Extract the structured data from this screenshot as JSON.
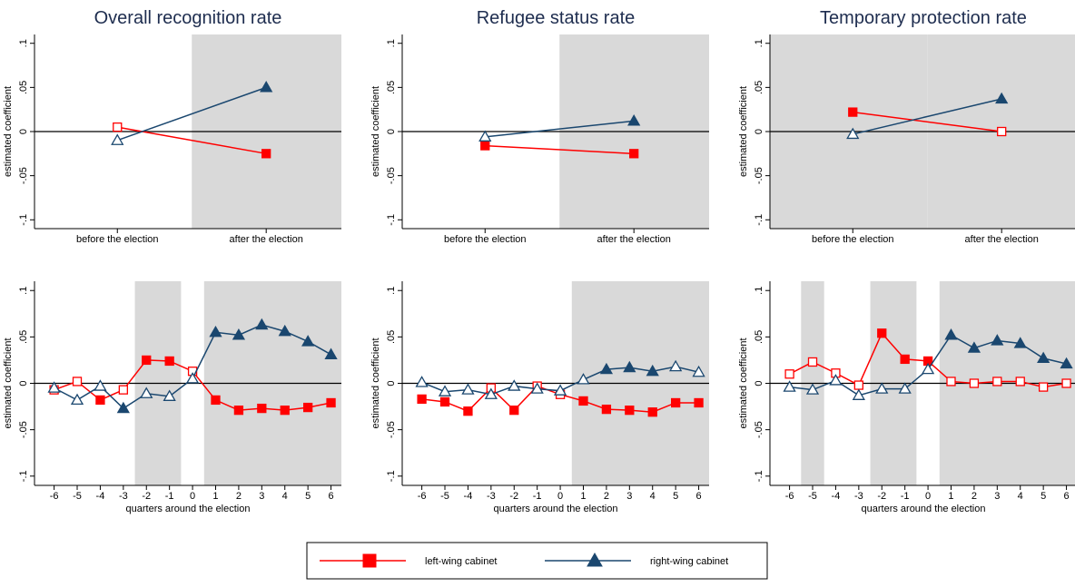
{
  "chart_data": [
    {
      "type": "line",
      "title": "Overall recognition rate",
      "ylabel": "estimated coefficient",
      "categories": [
        "before the election",
        "after the election"
      ],
      "ylim": [
        -0.11,
        0.11
      ],
      "yticks": [
        {
          "value": -0.1,
          "label": "-.1"
        },
        {
          "value": -0.05,
          "label": "-.05"
        },
        0,
        {
          "value": 0.05,
          "label": ".05"
        },
        {
          "value": 0.1,
          "label": ".1"
        }
      ],
      "shaded_categories": [
        1
      ],
      "series": [
        {
          "color": "#ff0000",
          "marker": "square",
          "values": [
            0.005,
            -0.025
          ],
          "filled": [
            false,
            true
          ]
        },
        {
          "color": "#1a476f",
          "marker": "triangle",
          "values": [
            -0.01,
            0.05
          ],
          "filled": [
            false,
            true
          ]
        }
      ]
    },
    {
      "type": "line",
      "title": "Refugee status rate",
      "ylabel": "estimated coefficient",
      "categories": [
        "before the election",
        "after the election"
      ],
      "ylim": [
        -0.11,
        0.11
      ],
      "yticks": [
        {
          "value": -0.1,
          "label": "-.1"
        },
        {
          "value": -0.05,
          "label": "-.05"
        },
        0,
        {
          "value": 0.05,
          "label": ".05"
        },
        {
          "value": 0.1,
          "label": ".1"
        }
      ],
      "shaded_categories": [
        1
      ],
      "series": [
        {
          "color": "#ff0000",
          "marker": "square",
          "values": [
            -0.016,
            -0.025
          ],
          "filled": [
            true,
            true
          ]
        },
        {
          "color": "#1a476f",
          "marker": "triangle",
          "values": [
            -0.006,
            0.012
          ],
          "filled": [
            false,
            true
          ]
        }
      ]
    },
    {
      "type": "line",
      "title": "Temporary protection rate",
      "ylabel": "estimated coefficient",
      "categories": [
        "before the election",
        "after the election"
      ],
      "ylim": [
        -0.11,
        0.11
      ],
      "yticks": [
        {
          "value": -0.1,
          "label": "-.1"
        },
        {
          "value": -0.05,
          "label": "-.05"
        },
        0,
        {
          "value": 0.05,
          "label": ".05"
        },
        {
          "value": 0.1,
          "label": ".1"
        }
      ],
      "shaded_categories": [
        0,
        1
      ],
      "series": [
        {
          "color": "#ff0000",
          "marker": "square",
          "values": [
            0.022,
            0
          ],
          "filled": [
            true,
            false
          ]
        },
        {
          "color": "#1a476f",
          "marker": "triangle",
          "values": [
            -0.003,
            0.037
          ],
          "filled": [
            false,
            true
          ]
        }
      ]
    },
    {
      "type": "line",
      "ylabel": "estimated coefficient",
      "xlabel": "quarters around the election",
      "x": [
        -6,
        -5,
        -4,
        -3,
        -2,
        -1,
        0,
        1,
        2,
        3,
        4,
        5,
        6
      ],
      "xlim": [
        -6.85,
        6.45
      ],
      "xticks": [
        -6,
        -5,
        -4,
        -3,
        -2,
        -1,
        0,
        1,
        2,
        3,
        4,
        5,
        6
      ],
      "ylim": [
        -0.11,
        0.11
      ],
      "yticks": [
        {
          "value": -0.1,
          "label": "-.1"
        },
        {
          "value": -0.05,
          "label": "-.05"
        },
        0,
        {
          "value": 0.05,
          "label": ".05"
        },
        {
          "value": 0.1,
          "label": ".1"
        }
      ],
      "shaded_x": [
        [
          -2.5,
          -0.5
        ],
        [
          0.5,
          6.5
        ]
      ],
      "series": [
        {
          "color": "#ff0000",
          "marker": "square",
          "values": [
            -0.007,
            0.002,
            -0.018,
            -0.007,
            0.025,
            0.024,
            0.013,
            -0.018,
            -0.029,
            -0.027,
            -0.029,
            -0.026,
            -0.021
          ],
          "filled": [
            false,
            false,
            true,
            false,
            true,
            true,
            false,
            true,
            true,
            true,
            true,
            true,
            true
          ]
        },
        {
          "color": "#1a476f",
          "marker": "triangle",
          "values": [
            -0.005,
            -0.018,
            -0.003,
            -0.027,
            -0.011,
            -0.014,
            0.005,
            0.055,
            0.052,
            0.063,
            0.056,
            0.045,
            0.031
          ],
          "filled": [
            false,
            false,
            false,
            true,
            false,
            false,
            false,
            true,
            true,
            true,
            true,
            true,
            true
          ]
        }
      ]
    },
    {
      "type": "line",
      "ylabel": "estimated coefficient",
      "xlabel": "quarters around the election",
      "x": [
        -6,
        -5,
        -4,
        -3,
        -2,
        -1,
        0,
        1,
        2,
        3,
        4,
        5,
        6
      ],
      "xlim": [
        -6.85,
        6.45
      ],
      "xticks": [
        -6,
        -5,
        -4,
        -3,
        -2,
        -1,
        0,
        1,
        2,
        3,
        4,
        5,
        6
      ],
      "ylim": [
        -0.11,
        0.11
      ],
      "yticks": [
        {
          "value": -0.1,
          "label": "-.1"
        },
        {
          "value": -0.05,
          "label": "-.05"
        },
        0,
        {
          "value": 0.05,
          "label": ".05"
        },
        {
          "value": 0.1,
          "label": ".1"
        }
      ],
      "shaded_x": [
        [
          0.5,
          6.5
        ]
      ],
      "series": [
        {
          "color": "#ff0000",
          "marker": "square",
          "values": [
            -0.017,
            -0.02,
            -0.03,
            -0.005,
            -0.029,
            -0.003,
            -0.012,
            -0.019,
            -0.028,
            -0.029,
            -0.031,
            -0.021,
            -0.021
          ],
          "filled": [
            true,
            true,
            true,
            false,
            true,
            false,
            false,
            true,
            true,
            true,
            true,
            true,
            true
          ]
        },
        {
          "color": "#1a476f",
          "marker": "triangle",
          "values": [
            0.001,
            -0.009,
            -0.007,
            -0.012,
            -0.003,
            -0.006,
            -0.008,
            0.004,
            0.015,
            0.017,
            0.013,
            0.018,
            0.012
          ],
          "filled": [
            false,
            false,
            false,
            false,
            false,
            false,
            false,
            false,
            true,
            true,
            true,
            false,
            false
          ]
        }
      ]
    },
    {
      "type": "line",
      "ylabel": "estimated coefficient",
      "xlabel": "quarters around the election",
      "x": [
        -6,
        -5,
        -4,
        -3,
        -2,
        -1,
        0,
        1,
        2,
        3,
        4,
        5,
        6
      ],
      "xlim": [
        -6.85,
        6.45
      ],
      "xticks": [
        -6,
        -5,
        -4,
        -3,
        -2,
        -1,
        0,
        1,
        2,
        3,
        4,
        5,
        6
      ],
      "ylim": [
        -0.11,
        0.11
      ],
      "yticks": [
        {
          "value": -0.1,
          "label": "-.1"
        },
        {
          "value": -0.05,
          "label": "-.05"
        },
        0,
        {
          "value": 0.05,
          "label": ".05"
        },
        {
          "value": 0.1,
          "label": ".1"
        }
      ],
      "shaded_x": [
        [
          -5.5,
          -4.5
        ],
        [
          -2.5,
          -0.5
        ],
        [
          0.5,
          6.5
        ]
      ],
      "series": [
        {
          "color": "#ff0000",
          "marker": "square",
          "values": [
            0.01,
            0.023,
            0.011,
            -0.002,
            0.054,
            0.026,
            0.024,
            0.002,
            0,
            0.002,
            0.002,
            -0.004,
            0
          ],
          "filled": [
            false,
            false,
            false,
            false,
            true,
            true,
            true,
            false,
            false,
            false,
            false,
            false,
            false
          ]
        },
        {
          "color": "#1a476f",
          "marker": "triangle",
          "values": [
            -0.004,
            -0.007,
            0.003,
            -0.013,
            -0.006,
            -0.006,
            0.015,
            0.052,
            0.038,
            0.046,
            0.043,
            0.027,
            0.021
          ],
          "filled": [
            false,
            false,
            false,
            false,
            false,
            false,
            false,
            true,
            true,
            true,
            true,
            true,
            true
          ]
        }
      ]
    }
  ],
  "legend": {
    "position": "bottom",
    "entries": [
      {
        "name": "left-wing cabinet",
        "color": "#ff0000",
        "marker": "square"
      },
      {
        "name": "right-wing cabinet",
        "color": "#1a476f",
        "marker": "triangle"
      }
    ]
  }
}
